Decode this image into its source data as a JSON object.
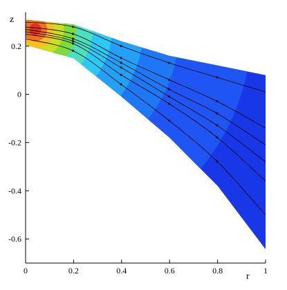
{
  "chart_data": {
    "type": "contour-stream",
    "x_label": "r",
    "y_label": "z",
    "xlim": [
      0,
      1
    ],
    "ylim": [
      -0.7,
      0.34
    ],
    "xticks": [
      0,
      0.2,
      0.4,
      0.6,
      0.8,
      1
    ],
    "yticks": [
      -0.6,
      -0.4,
      -0.2,
      0,
      0.2
    ],
    "x": [
      0,
      0.2,
      0.4,
      0.6,
      0.8,
      1
    ],
    "top_boundary": [
      0.31,
      0.29,
      0.22,
      0.16,
      0.12,
      0.08
    ],
    "bottom_boundary": [
      0.205,
      0.15,
      -0.01,
      -0.18,
      -0.38,
      -0.643
    ],
    "contour": {
      "center": [
        0.04,
        0.27
      ],
      "background": "#1838e8",
      "bands": [
        {
          "radius": 0.9,
          "color": "#1f55f2"
        },
        {
          "radius": 0.6,
          "color": "#1e78f5"
        },
        {
          "radius": 0.45,
          "color": "#25a0f7"
        },
        {
          "radius": 0.32,
          "color": "#2ec8f5"
        },
        {
          "radius": 0.24,
          "color": "#4de0c0"
        },
        {
          "radius": 0.17,
          "color": "#7ddc3a"
        },
        {
          "radius": 0.12,
          "color": "#c8e020"
        },
        {
          "radius": 0.08,
          "color": "#f5c020"
        },
        {
          "radius": 0.05,
          "color": "#f07020"
        },
        {
          "radius": 0.025,
          "color": "#e83020"
        }
      ]
    },
    "streamline_color": "#000000",
    "streamlines": [
      [
        0.3,
        0.28,
        0.2,
        0.13,
        0.07,
        0.01
      ],
      [
        0.28,
        0.25,
        0.15,
        0.06,
        -0.03,
        -0.14
      ],
      [
        0.27,
        0.23,
        0.13,
        0.02,
        -0.08,
        -0.21
      ],
      [
        0.26,
        0.22,
        0.11,
        -0.01,
        -0.13,
        -0.28
      ],
      [
        0.25,
        0.21,
        0.08,
        -0.04,
        -0.18,
        -0.36
      ],
      [
        0.23,
        0.18,
        0.04,
        -0.11,
        -0.28,
        -0.5
      ]
    ]
  }
}
